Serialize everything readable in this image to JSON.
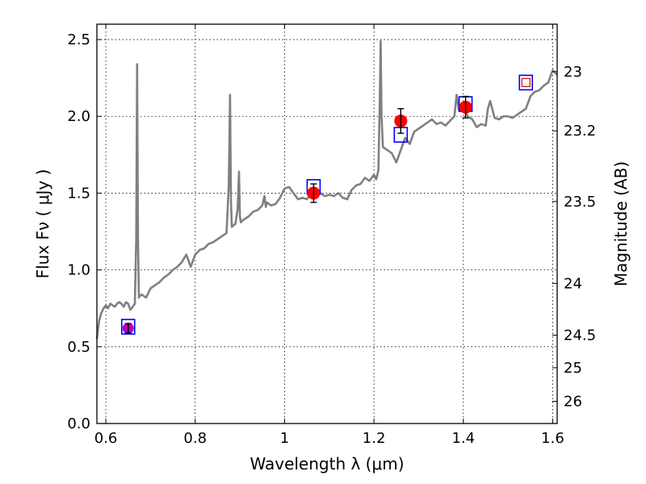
{
  "chart_data": {
    "type": "line",
    "xlabel": "Wavelength  λ (μm)",
    "ylabel": "Flux  Fν  ( μJy )",
    "y2label": "Magnitude (AB)",
    "xlim": [
      0.58,
      1.61
    ],
    "ylim": [
      0.0,
      2.6
    ],
    "grid": true,
    "x_ticks": [
      {
        "value": 0.6,
        "label": "0.6"
      },
      {
        "value": 0.8,
        "label": "0.8"
      },
      {
        "value": 1.0,
        "label": "1"
      },
      {
        "value": 1.2,
        "label": "1.2"
      },
      {
        "value": 1.4,
        "label": "1.4"
      },
      {
        "value": 1.6,
        "label": "1.6"
      }
    ],
    "y_ticks": [
      {
        "value": 0.0,
        "label": "0.0"
      },
      {
        "value": 0.5,
        "label": "0.5"
      },
      {
        "value": 1.0,
        "label": "1.0"
      },
      {
        "value": 1.5,
        "label": "1.5"
      },
      {
        "value": 2.0,
        "label": "2.0"
      },
      {
        "value": 2.5,
        "label": "2.5"
      }
    ],
    "y2_ticks": [
      {
        "mag": 23.0,
        "label": "23"
      },
      {
        "mag": 23.2,
        "label": "23.2"
      },
      {
        "mag": 23.5,
        "label": "23.5"
      },
      {
        "mag": 24.0,
        "label": "24"
      },
      {
        "mag": 24.5,
        "label": "24.5"
      },
      {
        "mag": 25.0,
        "label": "25"
      },
      {
        "mag": 26.0,
        "label": "26"
      }
    ],
    "spectrum": {
      "color": "#808080",
      "x": [
        0.58,
        0.585,
        0.59,
        0.595,
        0.6,
        0.605,
        0.61,
        0.615,
        0.62,
        0.625,
        0.63,
        0.635,
        0.64,
        0.645,
        0.65,
        0.655,
        0.66,
        0.665,
        0.668,
        0.67,
        0.672,
        0.674,
        0.676,
        0.68,
        0.69,
        0.7,
        0.71,
        0.72,
        0.73,
        0.74,
        0.75,
        0.76,
        0.77,
        0.78,
        0.79,
        0.8,
        0.81,
        0.82,
        0.83,
        0.84,
        0.85,
        0.86,
        0.87,
        0.875,
        0.878,
        0.88,
        0.882,
        0.885,
        0.89,
        0.895,
        0.898,
        0.9,
        0.902,
        0.905,
        0.91,
        0.92,
        0.93,
        0.94,
        0.95,
        0.955,
        0.958,
        0.96,
        0.97,
        0.98,
        0.99,
        1.0,
        1.01,
        1.02,
        1.03,
        1.04,
        1.05,
        1.06,
        1.07,
        1.08,
        1.09,
        1.1,
        1.11,
        1.12,
        1.13,
        1.14,
        1.15,
        1.16,
        1.17,
        1.18,
        1.19,
        1.2,
        1.205,
        1.21,
        1.213,
        1.215,
        1.217,
        1.22,
        1.23,
        1.24,
        1.25,
        1.26,
        1.27,
        1.28,
        1.29,
        1.3,
        1.31,
        1.32,
        1.33,
        1.34,
        1.35,
        1.36,
        1.37,
        1.38,
        1.385,
        1.39,
        1.4,
        1.41,
        1.42,
        1.43,
        1.44,
        1.45,
        1.455,
        1.46,
        1.47,
        1.48,
        1.49,
        1.5,
        1.51,
        1.52,
        1.53,
        1.54,
        1.55,
        1.56,
        1.57,
        1.58,
        1.59,
        1.6,
        1.61
      ],
      "y": [
        0.55,
        0.67,
        0.72,
        0.75,
        0.77,
        0.75,
        0.78,
        0.77,
        0.76,
        0.78,
        0.79,
        0.78,
        0.76,
        0.79,
        0.78,
        0.74,
        0.76,
        0.78,
        1.2,
        2.34,
        1.2,
        0.82,
        0.83,
        0.84,
        0.82,
        0.88,
        0.9,
        0.92,
        0.95,
        0.97,
        1.0,
        1.02,
        1.05,
        1.1,
        1.02,
        1.1,
        1.13,
        1.14,
        1.17,
        1.18,
        1.2,
        1.22,
        1.24,
        1.55,
        2.14,
        1.45,
        1.28,
        1.29,
        1.3,
        1.4,
        1.64,
        1.35,
        1.31,
        1.32,
        1.33,
        1.35,
        1.38,
        1.39,
        1.42,
        1.48,
        1.41,
        1.44,
        1.42,
        1.43,
        1.47,
        1.53,
        1.54,
        1.5,
        1.46,
        1.47,
        1.46,
        1.51,
        1.49,
        1.5,
        1.48,
        1.49,
        1.48,
        1.5,
        1.47,
        1.46,
        1.52,
        1.55,
        1.56,
        1.6,
        1.58,
        1.62,
        1.59,
        1.65,
        2.1,
        2.49,
        2.0,
        1.8,
        1.78,
        1.76,
        1.7,
        1.78,
        1.86,
        1.82,
        1.9,
        1.92,
        1.94,
        1.96,
        1.98,
        1.95,
        1.96,
        1.94,
        1.97,
        2.0,
        2.14,
        2.04,
        2.06,
        2.0,
        1.98,
        1.93,
        1.95,
        1.94,
        2.05,
        2.1,
        1.99,
        1.98,
        2.0,
        2.0,
        1.99,
        2.01,
        2.03,
        2.05,
        2.13,
        2.16,
        2.17,
        2.2,
        2.22,
        2.3,
        2.27
      ]
    },
    "observed_points": {
      "color": "#ff0000",
      "x": [
        1.065,
        1.26,
        1.405
      ],
      "y": [
        1.5,
        1.97,
        2.06
      ],
      "yerr": [
        0.06,
        0.08,
        0.07
      ]
    },
    "magenta_point": {
      "color": "#bb00bb",
      "x": [
        0.65
      ],
      "y": [
        0.62
      ],
      "yerr": [
        0.03
      ]
    },
    "model_points": {
      "color": "#0000ff",
      "x": [
        0.65,
        1.065,
        1.26,
        1.405,
        1.54
      ],
      "y": [
        0.63,
        1.54,
        1.88,
        2.08,
        2.22
      ]
    },
    "upper_limit_marker": {
      "color": "#dd0000",
      "x": 1.54,
      "y": 2.22
    },
    "colors": {
      "spectrum": "#808080",
      "observed": "#ff0000",
      "model": "#0000ff",
      "grid": "#000000"
    }
  }
}
